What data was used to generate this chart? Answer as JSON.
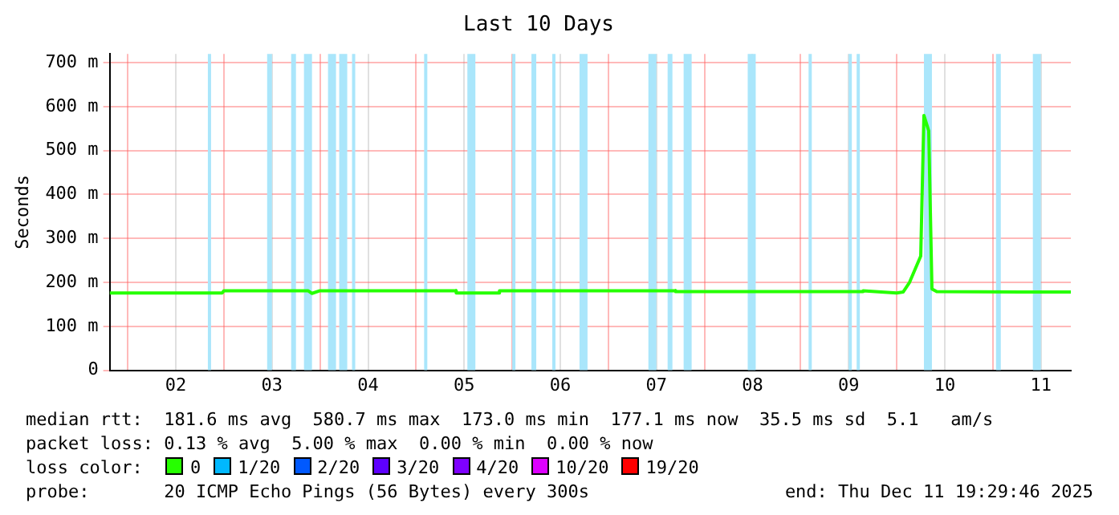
{
  "chart_data": {
    "type": "line",
    "title": "Last 10 Days",
    "ylabel": "Seconds",
    "legend_title": "loss color:",
    "legend": "bottom",
    "grid": true,
    "marker": "none",
    "xlim": [
      "2025-12-01T19:29",
      "2025-12-11T19:29"
    ],
    "xticks": [
      {
        "value": "2025-12-02T00:00",
        "label": null
      },
      {
        "value": "2025-12-02T12:00",
        "label": "02"
      },
      {
        "value": "2025-12-03T00:00",
        "label": null
      },
      {
        "value": "2025-12-03T12:00",
        "label": "03"
      },
      {
        "value": "2025-12-04T00:00",
        "label": null
      },
      {
        "value": "2025-12-04T12:00",
        "label": "04"
      },
      {
        "value": "2025-12-05T00:00",
        "label": null
      },
      {
        "value": "2025-12-05T12:00",
        "label": "05"
      },
      {
        "value": "2025-12-06T00:00",
        "label": null
      },
      {
        "value": "2025-12-06T12:00",
        "label": "06"
      },
      {
        "value": "2025-12-07T00:00",
        "label": null
      },
      {
        "value": "2025-12-07T12:00",
        "label": "07"
      },
      {
        "value": "2025-12-08T00:00",
        "label": null
      },
      {
        "value": "2025-12-08T12:00",
        "label": "08"
      },
      {
        "value": "2025-12-09T00:00",
        "label": null
      },
      {
        "value": "2025-12-09T12:00",
        "label": "09"
      },
      {
        "value": "2025-12-10T00:00",
        "label": null
      },
      {
        "value": "2025-12-10T12:00",
        "label": "10"
      },
      {
        "value": "2025-12-11T00:00",
        "label": null
      },
      {
        "value": "2025-12-11T12:00",
        "label": "11"
      }
    ],
    "ylim": [
      0,
      720
    ],
    "yticks": [
      0,
      {
        "value": 100,
        "label": "100 m"
      },
      {
        "value": 200,
        "label": "200 m"
      },
      {
        "value": 300,
        "label": "300 m"
      },
      {
        "value": 400,
        "label": "400 m"
      },
      {
        "value": 500,
        "label": "500 m"
      },
      {
        "value": 600,
        "label": "600 m"
      },
      {
        "value": 700,
        "label": "700 m"
      }
    ],
    "x": [
      "2025-12-01T19:29",
      "2025-12-02T23:36",
      "2025-12-03T00:00",
      "2025-12-03T21:00",
      "2025-12-03T22:00",
      "2025-12-04T00:00",
      "2025-12-05T10:00",
      "2025-12-05T10:01",
      "2025-12-05T20:48",
      "2025-12-05T20:49",
      "2025-12-07T16:48",
      "2025-12-07T16:49",
      "2025-12-09T15:36",
      "2025-12-09T15:37",
      "2025-12-10T00:00",
      "2025-12-10T01:36",
      "2025-12-10T03:12",
      "2025-12-10T06:00",
      "2025-12-10T06:48",
      "2025-12-10T08:00",
      "2025-12-10T08:48",
      "2025-12-10T10:00",
      "2025-12-11T19:29"
    ],
    "series": [
      {
        "name": "0",
        "color": "#26ff00",
        "values": [
          176,
          176,
          181,
          181,
          175,
          181,
          181,
          176,
          176,
          181,
          181,
          179,
          179,
          181,
          176,
          178,
          200,
          260,
          580,
          545,
          185,
          179,
          178
        ]
      },
      {
        "name": "1/20",
        "color": "#00b8ff",
        "values": [
          null,
          null,
          null,
          null,
          null,
          null,
          null,
          null,
          null,
          null,
          null,
          null,
          null,
          null,
          null,
          null,
          null,
          null,
          null,
          null,
          null,
          null,
          null
        ]
      },
      {
        "name": "2/20",
        "color": "#0059ff",
        "values": [
          null,
          null,
          null,
          null,
          null,
          null,
          null,
          null,
          null,
          null,
          null,
          null,
          null,
          null,
          null,
          null,
          null,
          null,
          null,
          null,
          null,
          null,
          null
        ]
      },
      {
        "name": "3/20",
        "color": "#5e00ff",
        "values": [
          null,
          null,
          null,
          null,
          null,
          null,
          null,
          null,
          null,
          null,
          null,
          null,
          null,
          null,
          null,
          null,
          null,
          null,
          null,
          null,
          null,
          null,
          null
        ]
      },
      {
        "name": "4/20",
        "color": "#7e00ff",
        "values": [
          null,
          null,
          null,
          null,
          null,
          null,
          null,
          null,
          null,
          null,
          null,
          null,
          null,
          null,
          null,
          null,
          null,
          null,
          null,
          null,
          null,
          null,
          null
        ]
      },
      {
        "name": "10/20",
        "color": "#dd00ff",
        "values": [
          null,
          null,
          null,
          null,
          null,
          null,
          null,
          null,
          null,
          null,
          null,
          null,
          null,
          null,
          null,
          null,
          null,
          null,
          null,
          null,
          null,
          null,
          null
        ]
      },
      {
        "name": "19/20",
        "color": "#ff0000",
        "values": [
          null,
          null,
          null,
          null,
          null,
          null,
          null,
          null,
          null,
          null,
          null,
          null,
          null,
          null,
          null,
          null,
          null,
          null,
          null,
          null,
          null,
          null,
          null
        ]
      }
    ],
    "bands": [
      {
        "axis": "x",
        "from": "2025-12-02T20:00",
        "to": "2025-12-02T20:48",
        "color": "#aae6fb"
      },
      {
        "axis": "x",
        "from": "2025-12-03T10:48",
        "to": "2025-12-03T12:00",
        "color": "#aae6fb"
      },
      {
        "axis": "x",
        "from": "2025-12-03T16:48",
        "to": "2025-12-03T18:00",
        "color": "#aae6fb"
      },
      {
        "axis": "x",
        "from": "2025-12-03T20:00",
        "to": "2025-12-03T22:00",
        "color": "#aae6fb"
      },
      {
        "axis": "x",
        "from": "2025-12-04T02:00",
        "to": "2025-12-04T04:00",
        "color": "#aae6fb"
      },
      {
        "axis": "x",
        "from": "2025-12-04T04:48",
        "to": "2025-12-04T06:48",
        "color": "#aae6fb"
      },
      {
        "axis": "x",
        "from": "2025-12-04T08:00",
        "to": "2025-12-04T08:48",
        "color": "#aae6fb"
      },
      {
        "axis": "x",
        "from": "2025-12-05T02:00",
        "to": "2025-12-05T02:48",
        "color": "#aae6fb"
      },
      {
        "axis": "x",
        "from": "2025-12-05T12:48",
        "to": "2025-12-05T14:48",
        "color": "#aae6fb"
      },
      {
        "axis": "x",
        "from": "2025-12-06T00:00",
        "to": "2025-12-06T00:48",
        "color": "#aae6fb"
      },
      {
        "axis": "x",
        "from": "2025-12-06T04:48",
        "to": "2025-12-06T06:00",
        "color": "#aae6fb"
      },
      {
        "axis": "x",
        "from": "2025-12-06T10:00",
        "to": "2025-12-06T10:48",
        "color": "#aae6fb"
      },
      {
        "axis": "x",
        "from": "2025-12-06T16:48",
        "to": "2025-12-06T18:48",
        "color": "#aae6fb"
      },
      {
        "axis": "x",
        "from": "2025-12-07T10:00",
        "to": "2025-12-07T12:00",
        "color": "#aae6fb"
      },
      {
        "axis": "x",
        "from": "2025-12-07T14:48",
        "to": "2025-12-07T16:00",
        "color": "#aae6fb"
      },
      {
        "axis": "x",
        "from": "2025-12-07T18:48",
        "to": "2025-12-07T20:48",
        "color": "#aae6fb"
      },
      {
        "axis": "x",
        "from": "2025-12-08T10:48",
        "to": "2025-12-08T12:48",
        "color": "#aae6fb"
      },
      {
        "axis": "x",
        "from": "2025-12-09T02:00",
        "to": "2025-12-09T02:48",
        "color": "#aae6fb"
      },
      {
        "axis": "x",
        "from": "2025-12-09T12:00",
        "to": "2025-12-09T12:48",
        "color": "#aae6fb"
      },
      {
        "axis": "x",
        "from": "2025-12-09T14:00",
        "to": "2025-12-09T14:48",
        "color": "#aae6fb"
      },
      {
        "axis": "x",
        "from": "2025-12-10T06:48",
        "to": "2025-12-10T08:48",
        "color": "#aae6fb"
      },
      {
        "axis": "x",
        "from": "2025-12-11T00:48",
        "to": "2025-12-11T02:00",
        "color": "#aae6fb"
      },
      {
        "axis": "x",
        "from": "2025-12-11T10:00",
        "to": "2025-12-11T12:00",
        "color": "#aae6fb"
      }
    ],
    "annotations": [
      "median rtt:  181.6 ms avg  580.7 ms max  173.0 ms min  177.1 ms now  35.5 ms sd  5.1   am/s",
      "packet loss: 0.13 % avg  5.00 % max  0.00 % min  0.00 % now",
      "probe:       20 ICMP Echo Pings (56 Bytes) every 300s",
      "end: Thu Dec 11 19:29:46 2025"
    ]
  }
}
